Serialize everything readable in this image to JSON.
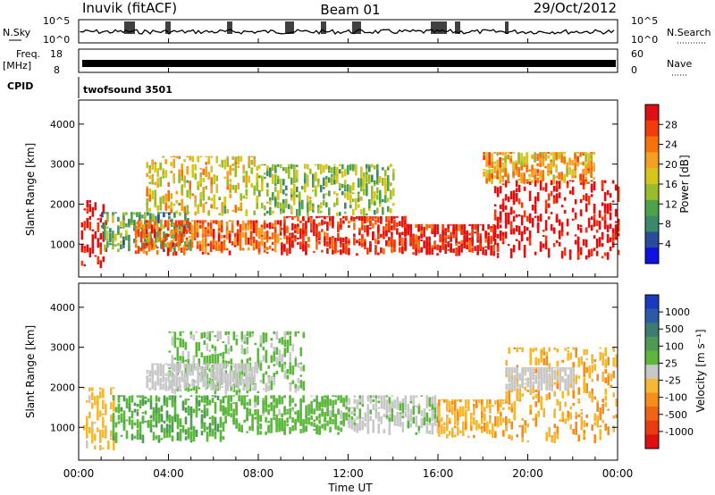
{
  "header": {
    "station": "Inuvik (fitACF)",
    "beam": "Beam 01",
    "date": "29/Oct/2012"
  },
  "panels": {
    "nsky_label": "N.Sky",
    "nsearch_label": "N.Search",
    "freq_label": "Freq.",
    "freq_unit": "[MHz]",
    "nave_label": "Nave",
    "cpid_label": "CPID",
    "cpid_value": "twofsound 3501",
    "nsky_ticks": [
      "10^5",
      "10^0"
    ],
    "nsearch_ticks": [
      "10^5",
      "10^0"
    ],
    "freq_ticks": [
      "18",
      "8"
    ],
    "nave_ticks": [
      "60",
      "0"
    ]
  },
  "power_colorbar": {
    "label": "Power [dB]",
    "ticks": [
      "28",
      "24",
      "20",
      "16",
      "12",
      "8",
      "4"
    ],
    "colors": [
      "#e01010",
      "#f23c0c",
      "#f5720a",
      "#f5a020",
      "#d5c51c",
      "#99bd2a",
      "#4fa24a",
      "#3a8a6a",
      "#2a4a9c",
      "#1010e0"
    ]
  },
  "velocity_colorbar": {
    "label": "Velocity [m s⁻¹]",
    "ticks": [
      "1000",
      "500",
      "100",
      "25",
      "-25",
      "-100",
      "-500",
      "-1000"
    ],
    "colors": [
      "#1a3ac0",
      "#2c5aa8",
      "#3c7c70",
      "#4f9a56",
      "#5ab83a",
      "#c8c8c8",
      "#f5b830",
      "#f58c1c",
      "#f06214",
      "#e83c10",
      "#e01010"
    ]
  },
  "x_axis": {
    "label": "Time UT",
    "ticks": [
      "00:00",
      "04:00",
      "08:00",
      "12:00",
      "16:00",
      "20:00",
      "00:00"
    ]
  },
  "chart_data": [
    {
      "type": "heatmap",
      "name": "power",
      "title": "",
      "xlabel": "Time UT",
      "ylabel": "Slant Range [km]",
      "x_range_hours": [
        0,
        24
      ],
      "ylim": [
        180,
        4600
      ],
      "yticks": [
        1000,
        2000,
        3000,
        4000
      ],
      "colorbar_label": "Power [dB]",
      "bands": [
        {
          "x0": 0.1,
          "x1": 1.2,
          "y0": 400,
          "y1": 2100,
          "value": 30
        },
        {
          "x0": 1.0,
          "x1": 5.0,
          "y0": 800,
          "y1": 1800,
          "value": 12
        },
        {
          "x0": 2.5,
          "x1": 9.0,
          "y0": 700,
          "y1": 1600,
          "value": 24
        },
        {
          "x0": 3.0,
          "x1": 8.0,
          "y0": 1700,
          "y1": 3200,
          "value": 18
        },
        {
          "x0": 9.0,
          "x1": 14.5,
          "y0": 700,
          "y1": 1700,
          "value": 28
        },
        {
          "x0": 8.0,
          "x1": 14.0,
          "y0": 1700,
          "y1": 3000,
          "value": 14
        },
        {
          "x0": 14.5,
          "x1": 18.5,
          "y0": 700,
          "y1": 1500,
          "value": 28
        },
        {
          "x0": 18.5,
          "x1": 24.0,
          "y0": 600,
          "y1": 2600,
          "value": 30
        },
        {
          "x0": 18.0,
          "x1": 23.0,
          "y0": 2500,
          "y1": 3300,
          "value": 20
        }
      ]
    },
    {
      "type": "heatmap",
      "name": "velocity",
      "title": "",
      "xlabel": "Time UT",
      "ylabel": "Slant Range [km]",
      "x_range_hours": [
        0,
        24
      ],
      "ylim": [
        180,
        4600
      ],
      "yticks": [
        1000,
        2000,
        3000,
        4000
      ],
      "colorbar_label": "Velocity [m s⁻¹]",
      "bands": [
        {
          "x0": 0.2,
          "x1": 1.6,
          "y0": 400,
          "y1": 2000,
          "value": -200
        },
        {
          "x0": 1.5,
          "x1": 6.5,
          "y0": 600,
          "y1": 1800,
          "value": 300
        },
        {
          "x0": 6.5,
          "x1": 12.0,
          "y0": 800,
          "y1": 1800,
          "value": 200
        },
        {
          "x0": 4.0,
          "x1": 10.0,
          "y0": 1800,
          "y1": 3400,
          "value": 150
        },
        {
          "x0": 12.0,
          "x1": 16.0,
          "y0": 800,
          "y1": 1800,
          "value": 60
        },
        {
          "x0": 16.0,
          "x1": 19.0,
          "y0": 700,
          "y1": 1700,
          "value": -300
        },
        {
          "x0": 19.0,
          "x1": 24.0,
          "y0": 600,
          "y1": 3000,
          "value": -300
        },
        {
          "x0": 3.0,
          "x1": 8.0,
          "y0": 1900,
          "y1": 2600,
          "value": 0
        },
        {
          "x0": 19.0,
          "x1": 22.0,
          "y0": 1900,
          "y1": 2500,
          "value": 0
        }
      ]
    }
  ]
}
